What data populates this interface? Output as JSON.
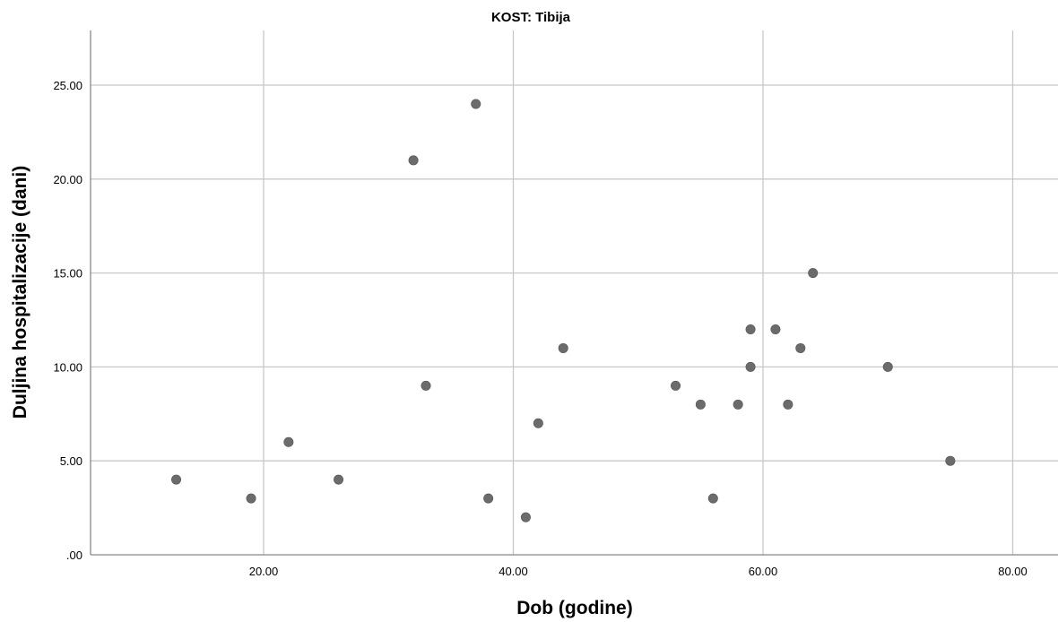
{
  "chart_data": {
    "type": "scatter",
    "title": "KOST: Tibija",
    "xlabel": "Dob (godine)",
    "ylabel": "Duljina hospitalizacije (dani)",
    "xlim": [
      7,
      82
    ],
    "ylim": [
      0,
      27.5
    ],
    "xticks": [
      20,
      40,
      60,
      80
    ],
    "xtick_labels": [
      "20.00",
      "40.00",
      "60.00",
      "80.00"
    ],
    "yticks": [
      0,
      5,
      10,
      15,
      20,
      25
    ],
    "ytick_labels": [
      ".00",
      "5.00",
      "10.00",
      "15.00",
      "20.00",
      "25.00"
    ],
    "grid": true,
    "point_color": "#6b6b6b",
    "x": [
      13,
      19,
      22,
      26,
      32,
      33,
      37,
      38,
      41,
      42,
      44,
      53,
      55,
      56,
      58,
      59,
      59,
      61,
      62,
      63,
      64,
      70,
      75
    ],
    "y": [
      4,
      3,
      6,
      4,
      21,
      9,
      24,
      3,
      2,
      7,
      11,
      9,
      8,
      3,
      8,
      12,
      10,
      12,
      8,
      11,
      15,
      10,
      5
    ]
  }
}
